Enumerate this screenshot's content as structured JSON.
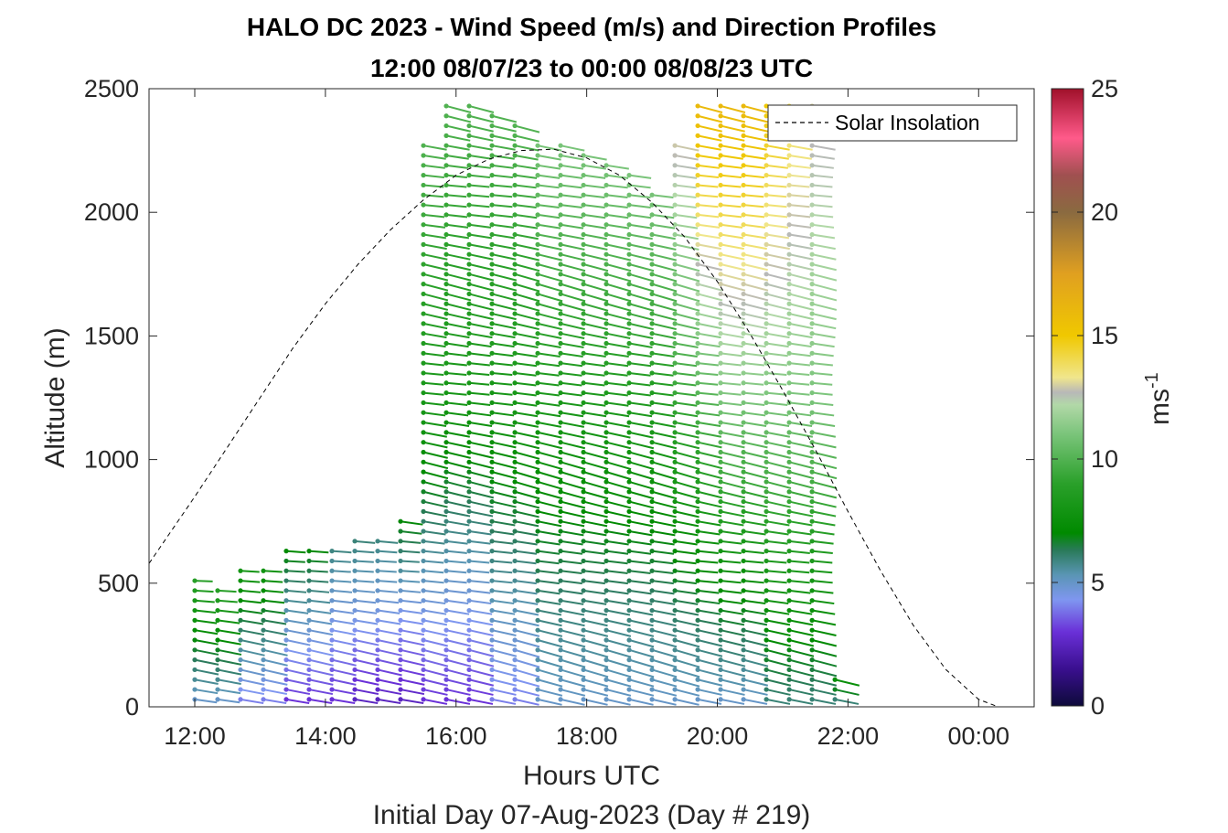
{
  "chart_data": {
    "type": "scatter",
    "title": "HALO DC 2023 - Wind Speed (m/s) and Direction Profiles",
    "subtitle": "12:00 08/07/23 to 00:00 08/08/23  UTC",
    "xlabel": "Hours UTC",
    "xlabel2": "Initial Day 07-Aug-2023 (Day # 219)",
    "ylabel": "Altitude (m)",
    "xlim": [
      11.3,
      24.85
    ],
    "ylim": [
      0,
      2500
    ],
    "xticks": [
      12,
      14,
      16,
      18,
      20,
      22,
      24
    ],
    "xtick_labels": [
      "12:00",
      "14:00",
      "16:00",
      "18:00",
      "20:00",
      "22:00",
      "00:00"
    ],
    "yticks": [
      0,
      500,
      1000,
      1500,
      2000,
      2500
    ],
    "ytick_labels": [
      "0",
      "500",
      "1000",
      "1500",
      "2000",
      "2500"
    ],
    "grid": false,
    "legend": {
      "entries": [
        "Solar Insolation"
      ],
      "placement": "top-right"
    },
    "colorbar": {
      "label": "ms",
      "label_superscript": "-1",
      "range": [
        0,
        25
      ],
      "ticks": [
        0,
        5,
        10,
        15,
        20,
        25
      ],
      "tick_labels": [
        "0",
        "5",
        "10",
        "15",
        "20",
        "25"
      ],
      "stops": [
        {
          "v": 0,
          "c": "#0d0a3a"
        },
        {
          "v": 1.5,
          "c": "#3a0f8f"
        },
        {
          "v": 3,
          "c": "#6a30d8"
        },
        {
          "v": 4.3,
          "c": "#7f96f0"
        },
        {
          "v": 5.3,
          "c": "#5a95b5"
        },
        {
          "v": 6.3,
          "c": "#2a7a5a"
        },
        {
          "v": 7,
          "c": "#008a00"
        },
        {
          "v": 9,
          "c": "#2aa02a"
        },
        {
          "v": 11,
          "c": "#7ac47a"
        },
        {
          "v": 12.2,
          "c": "#b2d8a8"
        },
        {
          "v": 12.7,
          "c": "#b8b8b8"
        },
        {
          "v": 13.3,
          "c": "#f0e68c"
        },
        {
          "v": 15,
          "c": "#f0c800"
        },
        {
          "v": 17.5,
          "c": "#e0a020"
        },
        {
          "v": 20,
          "c": "#8a6a40"
        },
        {
          "v": 21.5,
          "c": "#a05050"
        },
        {
          "v": 23,
          "c": "#ff5a8a"
        },
        {
          "v": 25,
          "c": "#a0102a"
        }
      ]
    },
    "series": [
      {
        "name": "Solar Insolation",
        "type": "line",
        "style": "dashed",
        "color": "#000000",
        "x": [
          11.3,
          12.0,
          12.5,
          13.0,
          13.5,
          14.0,
          14.5,
          15.0,
          15.5,
          16.0,
          16.5,
          17.0,
          17.5,
          18.0,
          18.5,
          19.0,
          19.5,
          20.0,
          20.5,
          21.0,
          21.5,
          22.0,
          22.5,
          23.0,
          23.5,
          24.0,
          24.3,
          24.5
        ],
        "y": [
          580,
          850,
          1050,
          1250,
          1450,
          1630,
          1790,
          1930,
          2050,
          2150,
          2215,
          2250,
          2255,
          2220,
          2150,
          2040,
          1900,
          1720,
          1510,
          1280,
          1040,
          790,
          550,
          330,
          150,
          30,
          0,
          0
        ]
      }
    ],
    "wind_barbs": {
      "note": "per profile: time (h UTC), altitude range (m), wind speed (m/s) at base/mid/top, direction (deg, from)",
      "profiles": [
        {
          "t": 12.0,
          "alt": [
            30,
            530
          ],
          "spd": [
            5,
            7,
            9
          ],
          "dir": 240
        },
        {
          "t": 12.35,
          "alt": [
            30,
            490
          ],
          "spd": [
            5,
            7,
            9
          ],
          "dir": 240
        },
        {
          "t": 12.7,
          "alt": [
            30,
            550
          ],
          "spd": [
            4,
            6,
            8
          ],
          "dir": 245
        },
        {
          "t": 13.05,
          "alt": [
            30,
            570
          ],
          "spd": [
            4,
            6,
            8
          ],
          "dir": 245
        },
        {
          "t": 13.4,
          "alt": [
            30,
            630
          ],
          "spd": [
            3,
            5,
            7
          ],
          "dir": 245
        },
        {
          "t": 13.75,
          "alt": [
            30,
            640
          ],
          "spd": [
            3,
            5,
            7
          ],
          "dir": 245
        },
        {
          "t": 14.1,
          "alt": [
            30,
            660
          ],
          "spd": [
            3,
            4.5,
            6
          ],
          "dir": 245
        },
        {
          "t": 14.45,
          "alt": [
            30,
            680
          ],
          "spd": [
            2.5,
            4.5,
            6
          ],
          "dir": 245
        },
        {
          "t": 14.8,
          "alt": [
            30,
            700
          ],
          "spd": [
            2.5,
            4.5,
            6
          ],
          "dir": 245
        },
        {
          "t": 15.15,
          "alt": [
            30,
            760
          ],
          "spd": [
            2.5,
            4.5,
            7
          ],
          "dir": 245
        },
        {
          "t": 15.5,
          "alt": [
            30,
            2300
          ],
          "spd": [
            3,
            8,
            10
          ],
          "dir": 250
        },
        {
          "t": 15.85,
          "alt": [
            30,
            2450
          ],
          "spd": [
            3,
            8,
            10
          ],
          "dir": 250
        },
        {
          "t": 16.2,
          "alt": [
            30,
            2450
          ],
          "spd": [
            3,
            8,
            10
          ],
          "dir": 250
        },
        {
          "t": 16.55,
          "alt": [
            30,
            2420
          ],
          "spd": [
            4,
            8,
            10
          ],
          "dir": 250
        },
        {
          "t": 16.9,
          "alt": [
            30,
            2350
          ],
          "spd": [
            4,
            8,
            10
          ],
          "dir": 255
        },
        {
          "t": 17.25,
          "alt": [
            30,
            2300
          ],
          "spd": [
            5,
            8,
            11
          ],
          "dir": 255
        },
        {
          "t": 17.6,
          "alt": [
            30,
            2280
          ],
          "spd": [
            5,
            8,
            11
          ],
          "dir": 255
        },
        {
          "t": 17.95,
          "alt": [
            30,
            2250
          ],
          "spd": [
            5,
            8,
            11
          ],
          "dir": 255
        },
        {
          "t": 18.3,
          "alt": [
            30,
            2200
          ],
          "spd": [
            5,
            8,
            11
          ],
          "dir": 255
        },
        {
          "t": 18.65,
          "alt": [
            30,
            2150
          ],
          "spd": [
            5,
            8,
            11
          ],
          "dir": 255
        },
        {
          "t": 19.0,
          "alt": [
            30,
            2100
          ],
          "spd": [
            5,
            8,
            11
          ],
          "dir": 255
        },
        {
          "t": 19.35,
          "alt": [
            30,
            2300
          ],
          "spd": [
            5,
            9,
            13
          ],
          "dir": 255
        },
        {
          "t": 19.7,
          "alt": [
            30,
            2450
          ],
          "spd": [
            5,
            10,
            16
          ],
          "dir": 250
        },
        {
          "t": 20.05,
          "alt": [
            30,
            2450
          ],
          "spd": [
            5,
            11,
            16
          ],
          "dir": 250
        },
        {
          "t": 20.4,
          "alt": [
            30,
            2450
          ],
          "spd": [
            5,
            11,
            16
          ],
          "dir": 250
        },
        {
          "t": 20.75,
          "alt": [
            30,
            2450
          ],
          "spd": [
            6,
            11,
            15
          ],
          "dir": 250
        },
        {
          "t": 21.1,
          "alt": [
            30,
            2450
          ],
          "spd": [
            6,
            11,
            14
          ],
          "dir": 250
        },
        {
          "t": 21.45,
          "alt": [
            30,
            2450
          ],
          "spd": [
            6,
            11,
            13
          ],
          "dir": 250
        },
        {
          "t": 21.8,
          "alt": [
            30,
            140
          ],
          "spd": [
            6,
            7,
            8
          ],
          "dir": 250
        }
      ]
    }
  }
}
